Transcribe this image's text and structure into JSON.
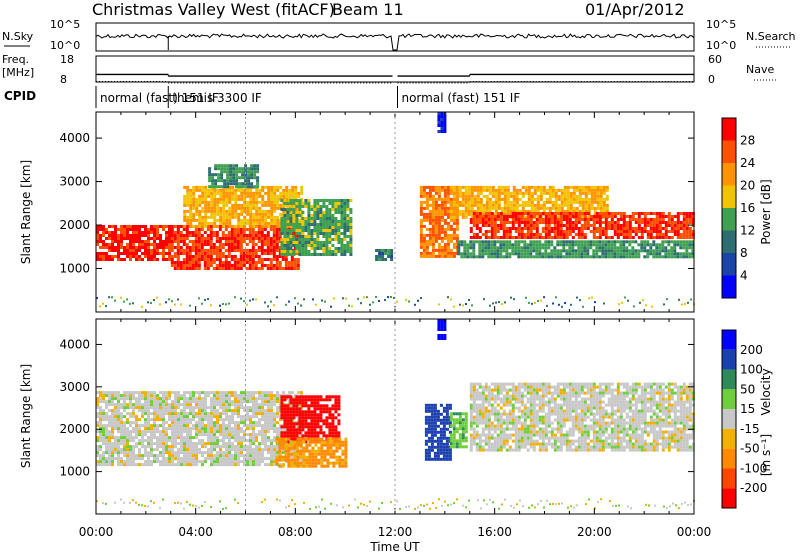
{
  "header": {
    "site": "Christmas Valley West (fitACF)",
    "beam": "Beam 11",
    "date": "01/Apr/2012"
  },
  "labels": {
    "nsky": "N.Sky",
    "nsearch": "N.Search",
    "freq_line1": "Freq.",
    "freq_line2": "[MHz]",
    "nave": "Nave",
    "cpid": "CPID",
    "slant_range": "Slant Range [km]",
    "power": "Power [dB]",
    "velocity": "Velocity",
    "velocity_units": "[m s⁻¹]",
    "time_ut": "Time UT",
    "noise_upper": "10^5",
    "noise_lower": "10^0",
    "freq_upper": "18",
    "freq_lower": "8",
    "nave_upper": "60",
    "nave_lower": "0"
  },
  "chart_data": [
    {
      "type": "line",
      "name": "noise",
      "x": [
        0,
        2.9,
        3.0,
        11.9,
        12.1,
        24
      ],
      "ylim_log10": [
        0,
        5
      ],
      "note_series": [
        "N.Sky",
        "N.Search"
      ]
    },
    {
      "type": "line",
      "name": "frequency-nave",
      "freq_steps": [
        [
          0,
          2.9,
          10.9
        ],
        [
          2.9,
          11.9,
          10.3
        ],
        [
          12.1,
          15.0,
          10.3
        ],
        [
          15.0,
          24,
          10.9
        ]
      ],
      "freq_ylim": [
        8,
        18
      ],
      "nave_ylim": [
        0,
        60
      ]
    },
    {
      "type": "table",
      "name": "cpid",
      "modes": [
        {
          "label": "normal (fast) 151 IF",
          "start": 0,
          "end": 2.9
        },
        {
          "label": "themis 3300 IF",
          "start": 2.9,
          "end": 11.9
        },
        {
          "label": "normal (fast) 151 IF",
          "start": 12.1,
          "end": 24
        }
      ]
    },
    {
      "type": "heatmap",
      "name": "power",
      "xlim": [
        0,
        24
      ],
      "ylim": [
        0,
        4600
      ],
      "xticks": [
        "00:00",
        "04:00",
        "08:00",
        "12:00",
        "16:00",
        "20:00",
        "00:00"
      ],
      "yticks": [
        1000,
        2000,
        3000,
        4000
      ],
      "colorbar_ticks": [
        4,
        8,
        12,
        16,
        20,
        24,
        28
      ],
      "colorbar_range": [
        0,
        30
      ],
      "regions": [
        {
          "t0": 0,
          "t1": 3.0,
          "r0": 1200,
          "r1": 2000,
          "v": 29
        },
        {
          "t0": 3.0,
          "t1": 8.1,
          "r0": 1000,
          "r1": 2000,
          "v": 28
        },
        {
          "t0": 3.5,
          "t1": 8.3,
          "r0": 2000,
          "r1": 2900,
          "v": 20
        },
        {
          "t0": 7.4,
          "t1": 10.2,
          "r0": 1300,
          "r1": 2600,
          "v": 14
        },
        {
          "t0": 4.5,
          "t1": 6.5,
          "r0": 2900,
          "r1": 3400,
          "v": 12
        },
        {
          "t0": 11.2,
          "t1": 11.9,
          "r0": 1200,
          "r1": 1450,
          "v": 10
        },
        {
          "t0": 13.0,
          "t1": 14.5,
          "r0": 1300,
          "r1": 2900,
          "v": 24
        },
        {
          "t0": 13.7,
          "t1": 14.0,
          "r0": 4150,
          "r1": 4600,
          "v": 4
        },
        {
          "t0": 14.2,
          "t1": 20.5,
          "r0": 2200,
          "r1": 2900,
          "v": 20
        },
        {
          "t0": 15.0,
          "t1": 24,
          "r0": 1700,
          "r1": 2300,
          "v": 28
        },
        {
          "t0": 14.5,
          "t1": 24,
          "r0": 1250,
          "r1": 1650,
          "v": 13
        }
      ]
    },
    {
      "type": "heatmap",
      "name": "velocity",
      "xlim": [
        0,
        24
      ],
      "ylim": [
        0,
        4600
      ],
      "xticks": [
        "00:00",
        "04:00",
        "08:00",
        "12:00",
        "16:00",
        "20:00",
        "00:00"
      ],
      "yticks": [
        1000,
        2000,
        3000,
        4000
      ],
      "colorbar_ticks": [
        200,
        100,
        50,
        15,
        -15,
        -50,
        -100,
        -200
      ],
      "regions": [
        {
          "t0": 0,
          "t1": 8.2,
          "r0": 1200,
          "r1": 2900,
          "v": 0
        },
        {
          "t0": 7.4,
          "t1": 9.8,
          "r0": 1700,
          "r1": 2800,
          "v": -250
        },
        {
          "t0": 7.2,
          "t1": 10.0,
          "r0": 1100,
          "r1": 1800,
          "v": -60
        },
        {
          "t0": 13.2,
          "t1": 14.2,
          "r0": 1300,
          "r1": 2600,
          "v": 120
        },
        {
          "t0": 13.7,
          "t1": 14.0,
          "r0": 4150,
          "r1": 4600,
          "v": 300
        },
        {
          "t0": 14.2,
          "t1": 14.9,
          "r0": 1600,
          "r1": 2400,
          "v": 40
        },
        {
          "t0": 15.0,
          "t1": 24,
          "r0": 1500,
          "r1": 3100,
          "v": 0
        }
      ]
    }
  ]
}
